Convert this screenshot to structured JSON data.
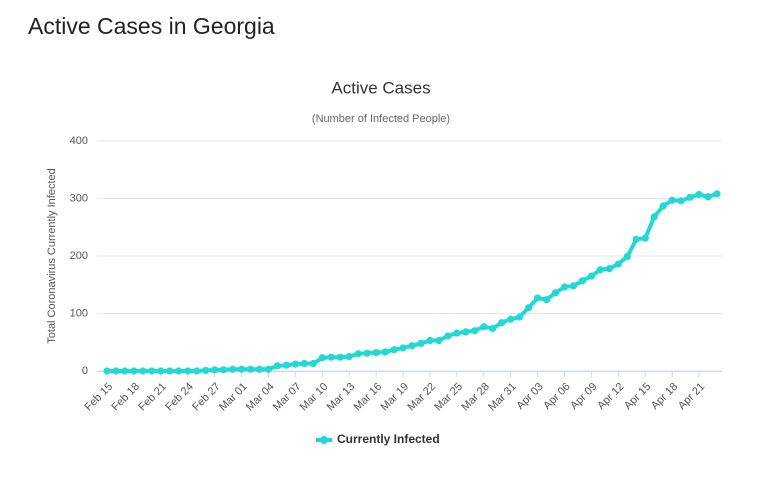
{
  "page_title": "Active Cases in Georgia",
  "chart_data": {
    "type": "line",
    "title": "Active Cases",
    "subtitle": "(Number of Infected People)",
    "y_label": "Total Coronavirus Currently Infected",
    "categories": [
      "Feb 15",
      null,
      null,
      "Feb 18",
      null,
      null,
      "Feb 21",
      null,
      null,
      "Feb 24",
      null,
      null,
      "Feb 27",
      null,
      null,
      "Mar 01",
      null,
      null,
      "Mar 04",
      null,
      null,
      "Mar 07",
      null,
      null,
      "Mar 10",
      null,
      null,
      "Mar 13",
      null,
      null,
      "Mar 16",
      null,
      null,
      "Mar 19",
      null,
      null,
      "Mar 22",
      null,
      null,
      "Mar 25",
      null,
      null,
      "Mar 28",
      null,
      null,
      "Mar 31",
      null,
      null,
      "Apr 03",
      null,
      null,
      "Apr 06",
      null,
      null,
      "Apr 09",
      null,
      null,
      "Apr 12",
      null,
      null,
      "Apr 15",
      null,
      null,
      "Apr 18",
      null,
      null,
      "Apr 21",
      null,
      null
    ],
    "series": [
      {
        "name": "Currently Infected",
        "color": "#22d8d4",
        "values": [
          0,
          0,
          0,
          0,
          0,
          0,
          0,
          0,
          0,
          0,
          0,
          1,
          2,
          2,
          3,
          3,
          3,
          3,
          3,
          9,
          10,
          12,
          13,
          13,
          23,
          24,
          24,
          25,
          30,
          31,
          32,
          33,
          37,
          40,
          44,
          48,
          53,
          53,
          61,
          66,
          68,
          70,
          77,
          74,
          84,
          90,
          94,
          110,
          127,
          124,
          136,
          146,
          148,
          157,
          165,
          176,
          178,
          186,
          199,
          229,
          231,
          268,
          287,
          297,
          296,
          302,
          307,
          303,
          308
        ]
      }
    ],
    "ylim": [
      0,
      400
    ],
    "yticks": [
      0,
      100,
      200,
      300,
      400
    ],
    "grid": true
  }
}
